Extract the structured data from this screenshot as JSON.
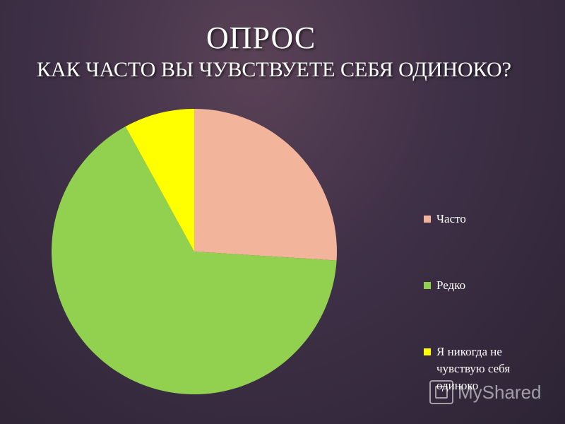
{
  "header": {
    "title": "ОПРОС",
    "question": "КАК ЧАСТО ВЫ ЧУВСТВУЕТЕ СЕБЯ ОДИНОКО?"
  },
  "chart_data": {
    "type": "pie",
    "title": "ОПРОС",
    "subtitle": "КАК ЧАСТО ВЫ ЧУВСТВУЕТЕ СЕБЯ ОДИНОКО?",
    "categories": [
      "Часто",
      "Редко",
      "Я никогда не чувствую себя одиноко"
    ],
    "values": [
      26,
      66,
      8
    ],
    "colors": [
      "#f2b49a",
      "#92d050",
      "#ffff00"
    ],
    "legend_placement": "right",
    "start": "top, clockwise"
  },
  "legend": {
    "items": [
      {
        "label": "Часто",
        "color": "#f2b49a"
      },
      {
        "label": "Редко",
        "color": "#92d050"
      },
      {
        "label": "Я никогда не чувствую себя одиноко",
        "color": "#ffff00"
      }
    ]
  },
  "watermark": {
    "text": "MyShared",
    "icon": "presentation-icon"
  }
}
